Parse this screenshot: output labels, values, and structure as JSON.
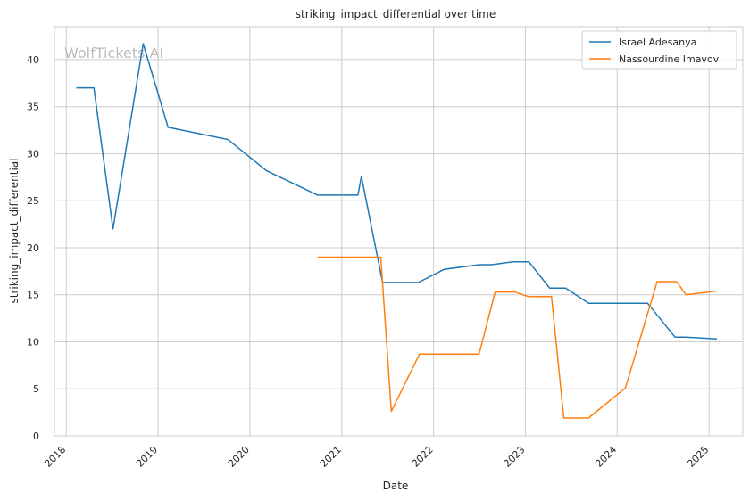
{
  "chart_data": {
    "type": "line",
    "title": "striking_impact_differential over time",
    "xlabel": "Date",
    "ylabel": "striking_impact_differential",
    "watermark": "WolfTickets.AI",
    "xlim": [
      "2017-11-15",
      "2025-05-15"
    ],
    "ylim": [
      0,
      43.5
    ],
    "x_ticks": [
      "2018-01-01",
      "2019-01-01",
      "2020-01-01",
      "2021-01-01",
      "2022-01-01",
      "2023-01-01",
      "2024-01-01",
      "2025-01-01"
    ],
    "x_tick_labels": [
      "2018",
      "2019",
      "2020",
      "2021",
      "2022",
      "2023",
      "2024",
      "2025"
    ],
    "y_ticks": [
      0,
      5,
      10,
      15,
      20,
      25,
      30,
      35,
      40
    ],
    "y_tick_labels": [
      "0",
      "5",
      "10",
      "15",
      "20",
      "25",
      "30",
      "35",
      "40"
    ],
    "grid": true,
    "legend_position": "top-right",
    "series": [
      {
        "name": "Israel Adesanya",
        "color": "#1f77b4",
        "points": [
          [
            "2018-02-10",
            37.0
          ],
          [
            "2018-04-21",
            37.0
          ],
          [
            "2018-07-06",
            22.0
          ],
          [
            "2018-11-03",
            41.7
          ],
          [
            "2019-02-10",
            32.8
          ],
          [
            "2019-10-06",
            31.5
          ],
          [
            "2020-03-07",
            28.2
          ],
          [
            "2020-09-27",
            25.6
          ],
          [
            "2021-03-06",
            25.6
          ],
          [
            "2021-03-20",
            27.6
          ],
          [
            "2021-06-12",
            16.3
          ],
          [
            "2021-11-01",
            16.3
          ],
          [
            "2022-02-12",
            17.7
          ],
          [
            "2022-07-02",
            18.2
          ],
          [
            "2022-08-20",
            18.2
          ],
          [
            "2022-11-12",
            18.5
          ],
          [
            "2023-01-15",
            18.5
          ],
          [
            "2023-04-08",
            15.7
          ],
          [
            "2023-06-10",
            15.7
          ],
          [
            "2023-09-10",
            14.1
          ],
          [
            "2024-05-01",
            14.1
          ],
          [
            "2024-08-18",
            10.5
          ],
          [
            "2024-09-30",
            10.5
          ],
          [
            "2025-02-01",
            10.3
          ]
        ]
      },
      {
        "name": "Nassourdine Imavov",
        "color": "#ff7f0e",
        "points": [
          [
            "2020-09-27",
            19.0
          ],
          [
            "2021-06-05",
            19.0
          ],
          [
            "2021-07-17",
            2.6
          ],
          [
            "2021-11-06",
            8.7
          ],
          [
            "2022-07-01",
            8.7
          ],
          [
            "2022-09-03",
            15.3
          ],
          [
            "2022-11-19",
            15.3
          ],
          [
            "2023-01-14",
            14.8
          ],
          [
            "2023-04-15",
            14.8
          ],
          [
            "2023-06-03",
            1.9
          ],
          [
            "2023-09-09",
            1.9
          ],
          [
            "2024-02-03",
            5.1
          ],
          [
            "2024-06-08",
            16.4
          ],
          [
            "2024-08-25",
            16.4
          ],
          [
            "2024-10-01",
            15.0
          ],
          [
            "2025-02-01",
            15.4
          ]
        ]
      }
    ]
  }
}
